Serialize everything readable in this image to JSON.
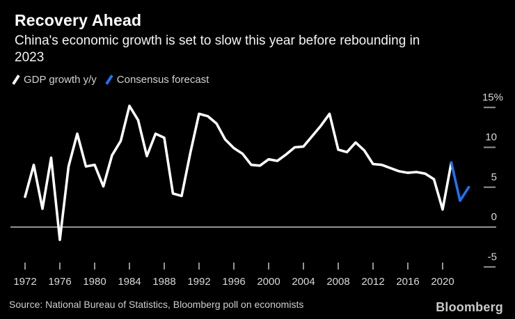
{
  "header": {
    "title": "Recovery Ahead",
    "subtitle_lines": [
      "China's economic growth is set to slow this year before rebounding in",
      "2023"
    ]
  },
  "chart_data": {
    "type": "line",
    "title": "Recovery Ahead",
    "subtitle": "China's economic growth is set to slow this year before rebounding in 2023",
    "grid": "zero-line-only",
    "legend_position": "top-left",
    "background_color": "#000000",
    "axis_color": "#949494",
    "x_axis": {
      "label": "",
      "ticks": [
        1972,
        1976,
        1980,
        1984,
        1988,
        1992,
        1996,
        2000,
        2004,
        2008,
        2012,
        2016,
        2020
      ],
      "range": [
        1972,
        2023
      ]
    },
    "y_axis": {
      "label": "",
      "unit": "%",
      "ticks": [
        15,
        10,
        5,
        0,
        -5
      ],
      "range": [
        -6.5,
        16.3
      ]
    },
    "series": [
      {
        "name": "GDP growth y/y",
        "color": "#ffffff",
        "start_year": 1972,
        "values": [
          3.8,
          7.8,
          2.3,
          8.7,
          -1.6,
          7.6,
          11.7,
          7.6,
          7.8,
          5.1,
          9.0,
          10.8,
          15.2,
          13.4,
          8.9,
          11.7,
          11.2,
          4.2,
          3.9,
          9.3,
          14.2,
          13.9,
          13.0,
          11.0,
          9.9,
          9.2,
          7.8,
          7.7,
          8.5,
          8.3,
          9.1,
          10.0,
          10.1,
          11.4,
          12.7,
          14.2,
          9.7,
          9.4,
          10.6,
          9.6,
          7.9,
          7.8,
          7.4,
          7.0,
          6.8,
          6.9,
          6.7,
          6.0,
          2.2,
          8.1
        ]
      },
      {
        "name": "Consensus forecast",
        "color": "#1e73f2",
        "start_year": 2021,
        "values": [
          8.1,
          3.3,
          5.0
        ]
      }
    ]
  },
  "footer": {
    "source": "Source: National Bureau of Statistics, Bloomberg poll on economists",
    "brand": "Bloomberg"
  }
}
